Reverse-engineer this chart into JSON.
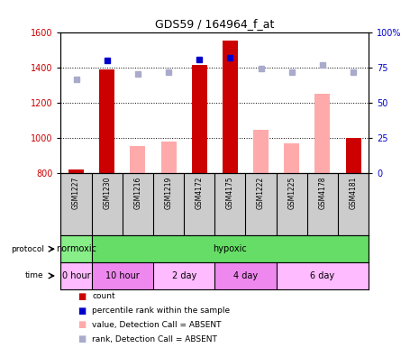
{
  "title": "GDS59 / 164964_f_at",
  "samples": [
    "GSM1227",
    "GSM1230",
    "GSM1216",
    "GSM1219",
    "GSM4172",
    "GSM4175",
    "GSM1222",
    "GSM1225",
    "GSM4178",
    "GSM4181"
  ],
  "count_values": [
    820,
    1390,
    null,
    null,
    1415,
    1550,
    null,
    null,
    null,
    1000
  ],
  "count_absent_values": [
    null,
    null,
    955,
    980,
    null,
    null,
    1045,
    970,
    1250,
    null
  ],
  "rank_values": [
    null,
    1440,
    null,
    null,
    1445,
    1455,
    null,
    null,
    null,
    null
  ],
  "rank_absent_values": [
    1330,
    null,
    1365,
    1375,
    null,
    null,
    1395,
    1375,
    1415,
    1375
  ],
  "ylim_left": [
    800,
    1600
  ],
  "ylim_right": [
    0,
    100
  ],
  "yticks_left": [
    800,
    1000,
    1200,
    1400,
    1600
  ],
  "yticks_right": [
    0,
    25,
    50,
    75,
    100
  ],
  "ytick_right_labels": [
    "0",
    "25",
    "50",
    "75",
    "100%"
  ],
  "bar_width": 0.5,
  "color_count": "#cc0000",
  "color_count_absent": "#ffaaaa",
  "color_rank": "#0000cc",
  "color_rank_absent": "#aaaacc",
  "bg_color": "#ffffff",
  "sample_bg_color": "#cccccc",
  "protocol_normoxic_color": "#88ee88",
  "protocol_hypoxic_color": "#66dd66",
  "time_color_light": "#ffbbff",
  "time_color_dark": "#ee88ee",
  "legend_items": [
    {
      "color": "#cc0000",
      "marker": "s",
      "label": "count"
    },
    {
      "color": "#0000cc",
      "marker": "s",
      "label": "percentile rank within the sample"
    },
    {
      "color": "#ffaaaa",
      "marker": "s",
      "label": "value, Detection Call = ABSENT"
    },
    {
      "color": "#aaaacc",
      "marker": "s",
      "label": "rank, Detection Call = ABSENT"
    }
  ]
}
